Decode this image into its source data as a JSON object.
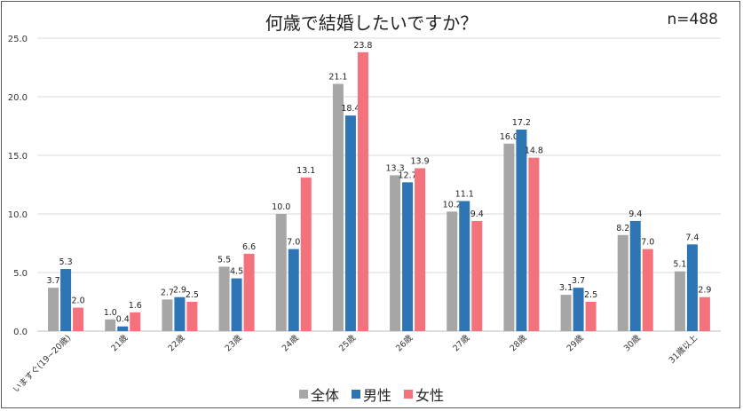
{
  "chart_data": {
    "type": "bar",
    "title": "何歳で結婚したいですか？",
    "sample_size": "n=488",
    "categories": [
      "いますぐ(19~20歳)",
      "21歳",
      "22歳",
      "23歳",
      "24歳",
      "25歳",
      "26歳",
      "27歳",
      "28歳",
      "29歳",
      "30歳",
      "31歳以上"
    ],
    "series": [
      {
        "name": "全体",
        "color": "#a6a6a6",
        "values": [
          3.7,
          1.0,
          2.7,
          5.5,
          10.0,
          21.1,
          13.3,
          10.2,
          16.0,
          3.1,
          8.2,
          5.1
        ]
      },
      {
        "name": "男性",
        "color": "#2e75b6",
        "values": [
          5.3,
          0.4,
          2.9,
          4.5,
          7.0,
          18.4,
          12.7,
          11.1,
          17.2,
          3.7,
          9.4,
          7.4
        ]
      },
      {
        "name": "女性",
        "color": "#f4727c",
        "values": [
          2.0,
          1.6,
          2.5,
          6.6,
          13.1,
          23.8,
          13.9,
          9.4,
          14.8,
          2.5,
          7.0,
          2.9
        ]
      }
    ],
    "ylim": [
      0,
      25
    ],
    "yticks": [
      "0.0",
      "5.0",
      "10.0",
      "15.0",
      "20.0",
      "25.0"
    ],
    "xlabel": "",
    "ylabel": "",
    "grid": true,
    "legend_position": "bottom"
  }
}
